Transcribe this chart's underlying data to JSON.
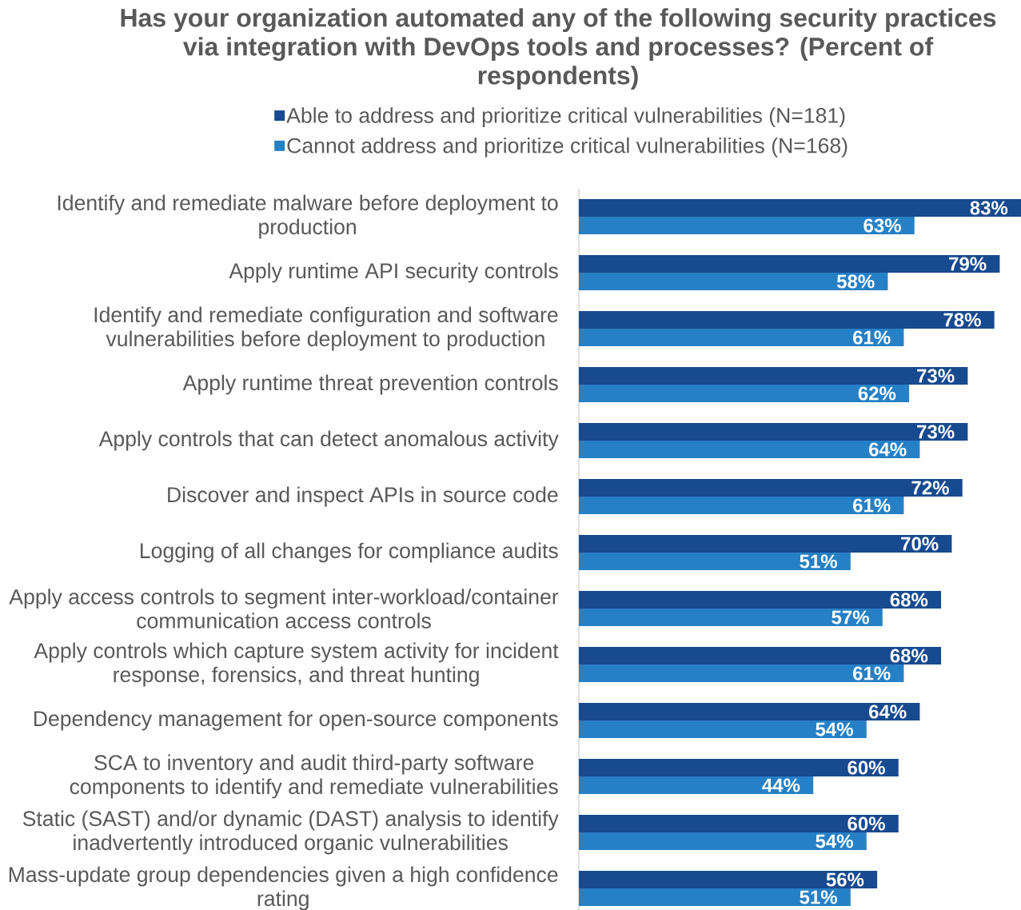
{
  "chart_data": {
    "type": "bar",
    "orientation": "horizontal",
    "title": "Has your organization automated any of the following security practices via integration with DevOps tools and processes? (Percent of respondents)",
    "categories": [
      "Identify and remediate malware before deployment to production",
      "Apply runtime API security controls",
      "Identify and remediate configuration and software vulnerabilities before deployment to production",
      "Apply runtime threat prevention controls",
      "Apply controls that can detect anomalous activity",
      "Discover and inspect APIs in source code",
      "Logging of all changes for compliance audits",
      "Apply access controls to segment inter-workload/container communication access controls",
      "Apply controls which capture system activity for incident response, forensics, and threat hunting",
      "Dependency management for open-source components",
      "SCA to inventory and audit third-party software components to identify and remediate vulnerabilities",
      "Static (SAST) and/or dynamic (DAST) analysis to identify inadvertently introduced organic vulnerabilities",
      "Mass-update group dependencies given a high confidence rating"
    ],
    "series": [
      {
        "name": "Able to address and prioritize critical vulnerabilities (N=181)",
        "color": "#174A8F",
        "values": [
          83,
          79,
          78,
          73,
          73,
          72,
          70,
          68,
          68,
          64,
          60,
          60,
          56
        ],
        "value_labels": [
          "83%",
          "79%",
          "78%",
          "73%",
          "73%",
          "72%",
          "70%",
          "68%",
          "68%",
          "64%",
          "60%",
          "60%",
          "56%"
        ]
      },
      {
        "name": "Cannot address and prioritize critical vulnerabilities (N=168)",
        "color": "#2680C6",
        "values": [
          63,
          58,
          61,
          62,
          64,
          61,
          51,
          57,
          61,
          54,
          44,
          54,
          51
        ],
        "value_labels": [
          "63%",
          "58%",
          "61%",
          "62%",
          "64%",
          "61%",
          "51%",
          "57%",
          "61%",
          "54%",
          "44%",
          "54%",
          "51%"
        ]
      }
    ],
    "legend": "top"
  }
}
